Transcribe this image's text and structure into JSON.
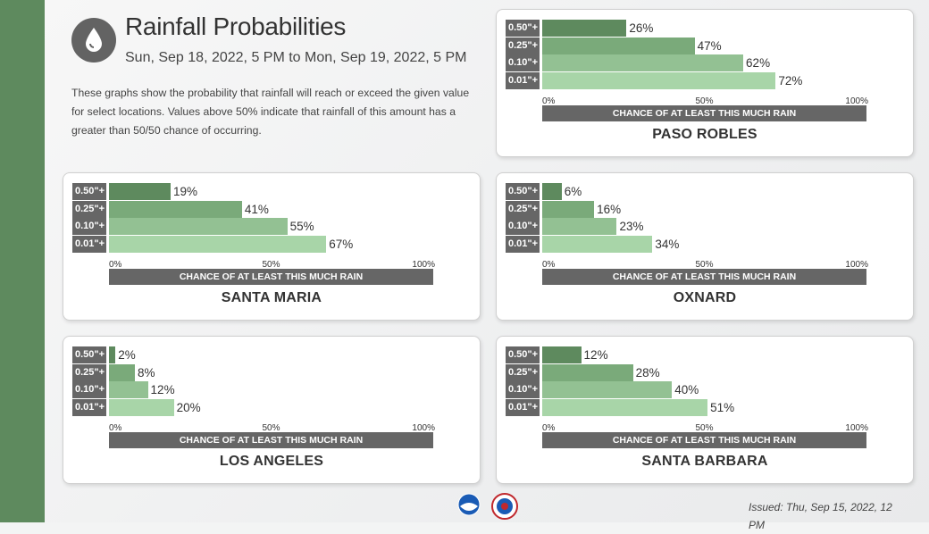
{
  "header": {
    "title": "Rainfall Probabilities",
    "subtitle": "Sun, Sep 18, 2022, 5 PM to Mon, Sep 19, 2022, 5 PM",
    "description": "These graphs show the probability that rainfall will reach or exceed the given value for select locations. Values above 50% indicate that rainfall of this amount has a greater than 50/50 chance of occurring.",
    "icon": "raindrop-icon"
  },
  "footer": {
    "issued": "Issued: Thu, Sep 15, 2022, 12 PM",
    "logos": [
      "noaa-logo",
      "nws-logo"
    ]
  },
  "colors": {
    "sidebar": "#5e8a5e",
    "label_bg": "#666666",
    "bar_colors": [
      "#5e8a5e",
      "#7aaa7a",
      "#93c193",
      "#a8d5a8"
    ]
  },
  "chart_data": [
    {
      "type": "bar",
      "orientation": "horizontal",
      "title": "PASO ROBLES",
      "categories": [
        "0.50\"+",
        "0.25\"+",
        "0.10\"+",
        "0.01\"+"
      ],
      "values": [
        26,
        47,
        62,
        72
      ],
      "value_labels": [
        "26%",
        "47%",
        "62%",
        "72%"
      ],
      "xlabel": "CHANCE OF AT LEAST THIS MUCH RAIN",
      "xticks": [
        "0%",
        "50%",
        "100%"
      ],
      "xlim": [
        0,
        100
      ]
    },
    {
      "type": "bar",
      "orientation": "horizontal",
      "title": "SANTA MARIA",
      "categories": [
        "0.50\"+",
        "0.25\"+",
        "0.10\"+",
        "0.01\"+"
      ],
      "values": [
        19,
        41,
        55,
        67
      ],
      "value_labels": [
        "19%",
        "41%",
        "55%",
        "67%"
      ],
      "xlabel": "CHANCE OF AT LEAST THIS MUCH RAIN",
      "xticks": [
        "0%",
        "50%",
        "100%"
      ],
      "xlim": [
        0,
        100
      ]
    },
    {
      "type": "bar",
      "orientation": "horizontal",
      "title": "OXNARD",
      "categories": [
        "0.50\"+",
        "0.25\"+",
        "0.10\"+",
        "0.01\"+"
      ],
      "values": [
        6,
        16,
        23,
        34
      ],
      "value_labels": [
        "6%",
        "16%",
        "23%",
        "34%"
      ],
      "xlabel": "CHANCE OF AT LEAST THIS MUCH RAIN",
      "xticks": [
        "0%",
        "50%",
        "100%"
      ],
      "xlim": [
        0,
        100
      ]
    },
    {
      "type": "bar",
      "orientation": "horizontal",
      "title": "LOS ANGELES",
      "categories": [
        "0.50\"+",
        "0.25\"+",
        "0.10\"+",
        "0.01\"+"
      ],
      "values": [
        2,
        8,
        12,
        20
      ],
      "value_labels": [
        "2%",
        "8%",
        "12%",
        "20%"
      ],
      "xlabel": "CHANCE OF AT LEAST THIS MUCH RAIN",
      "xticks": [
        "0%",
        "50%",
        "100%"
      ],
      "xlim": [
        0,
        100
      ]
    },
    {
      "type": "bar",
      "orientation": "horizontal",
      "title": "SANTA BARBARA",
      "categories": [
        "0.50\"+",
        "0.25\"+",
        "0.10\"+",
        "0.01\"+"
      ],
      "values": [
        12,
        28,
        40,
        51
      ],
      "value_labels": [
        "12%",
        "28%",
        "40%",
        "51%"
      ],
      "xlabel": "CHANCE OF AT LEAST THIS MUCH RAIN",
      "xticks": [
        "0%",
        "50%",
        "100%"
      ],
      "xlim": [
        0,
        100
      ]
    }
  ]
}
